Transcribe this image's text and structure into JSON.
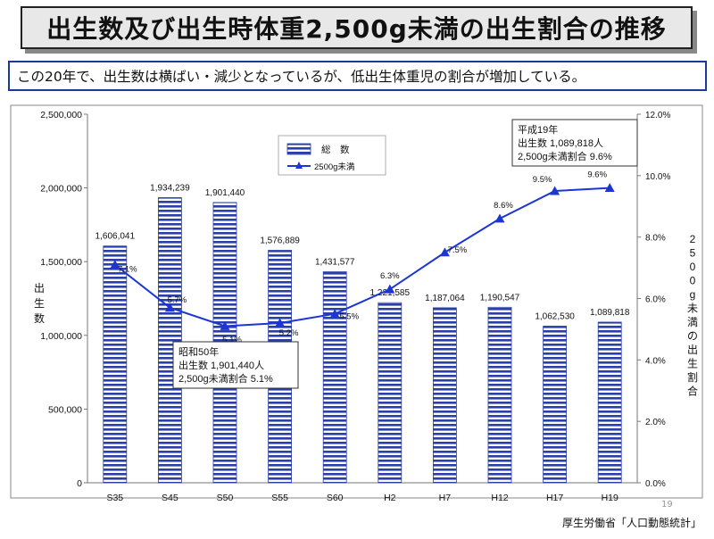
{
  "title": "出生数及び出生時体重2,500g未満の出生割合の推移",
  "subtitle": "この20年で、出生数は横ばい・減少となっているが、低出生体重児の割合が増加している。",
  "source": "厚生労働省「人口動態統計」",
  "page_number": "19",
  "colors": {
    "bar_stripe": "#2a3fa8",
    "line": "#1b35d6",
    "title_bg": "#e8e8e8"
  },
  "chart_data": {
    "type": "bar",
    "categories": [
      "S35",
      "S45",
      "S50",
      "S55",
      "S60",
      "H2",
      "H7",
      "H12",
      "H17",
      "H19"
    ],
    "series": [
      {
        "name": "総　数",
        "type": "bar",
        "axis": "left",
        "values": [
          1606041,
          1934239,
          1901440,
          1576889,
          1431577,
          1221585,
          1187064,
          1190547,
          1062530,
          1089818
        ],
        "labels": [
          "1,606,041",
          "1,934,239",
          "1,901,440",
          "1,576,889",
          "1,431,577",
          "1,221,585",
          "1,187,064",
          "1,190,547",
          "1,062,530",
          "1,089,818"
        ]
      },
      {
        "name": "2500g未満",
        "type": "line",
        "axis": "right",
        "values": [
          7.1,
          5.7,
          5.1,
          5.2,
          5.5,
          6.3,
          7.5,
          8.6,
          9.5,
          9.6
        ],
        "labels": [
          "7.1%",
          "5.7%",
          "5.1%",
          "5.2%",
          "5.5%",
          "6.3%",
          "7.5%",
          "8.6%",
          "9.5%",
          "9.6%"
        ]
      }
    ],
    "ylabel_left": "出生数",
    "ylabel_right": "2500g未満の出生割合",
    "ylim_left": [
      0,
      2500000
    ],
    "ylim_right": [
      0,
      12
    ],
    "yticks_left": [
      "0",
      "500,000",
      "1,000,000",
      "1,500,000",
      "2,000,000",
      "2,500,000"
    ],
    "yticks_right": [
      "0.0%",
      "2.0%",
      "4.0%",
      "6.0%",
      "8.0%",
      "10.0%",
      "12.0%"
    ],
    "legend_position": "top-left",
    "annotations": [
      {
        "lines": [
          "昭和50年",
          "出生数 1,901,440人",
          "2,500g未満割合 5.1%"
        ],
        "category": "S50"
      },
      {
        "lines": [
          "平成19年",
          "出生数 1,089,818人",
          "2,500g未満割合 9.6%"
        ],
        "category": "H19"
      }
    ]
  }
}
